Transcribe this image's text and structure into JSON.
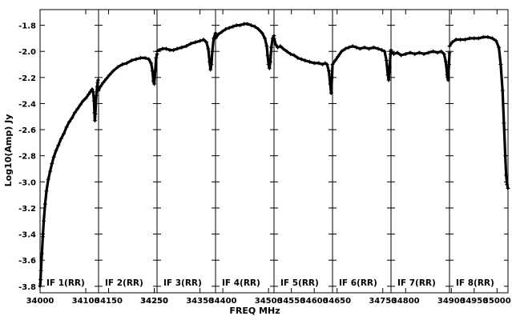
{
  "chart_data": {
    "type": "line",
    "xlabel": "FREQ MHz",
    "ylabel": "Log10(Amp) Jy",
    "ylim": [
      -3.85,
      -1.68
    ],
    "panels": [
      {
        "label": "IF 1(RR)",
        "xlim": [
          34000,
          34128
        ],
        "ticks": [
          {
            "v": 34000,
            "t": "34000"
          },
          {
            "v": 34100,
            "t": "34100"
          }
        ],
        "x": [
          34000,
          34001,
          34002,
          34004,
          34006,
          34008,
          34011,
          34014,
          34018,
          34022,
          34026,
          34030,
          34035,
          34040,
          34046,
          34052,
          34058,
          34064,
          34070,
          34076,
          34082,
          34088,
          34094,
          34100,
          34106,
          34110,
          34114,
          34116,
          34118,
          34119,
          34120,
          34121,
          34123,
          34125,
          34126,
          34127
        ],
        "y": [
          -3.8,
          -3.75,
          -3.68,
          -3.55,
          -3.42,
          -3.3,
          -3.17,
          -3.07,
          -2.98,
          -2.92,
          -2.86,
          -2.81,
          -2.76,
          -2.72,
          -2.67,
          -2.63,
          -2.58,
          -2.54,
          -2.51,
          -2.47,
          -2.44,
          -2.41,
          -2.38,
          -2.36,
          -2.33,
          -2.31,
          -2.29,
          -2.31,
          -2.38,
          -2.47,
          -2.53,
          -2.48,
          -2.34,
          -2.27,
          -2.24,
          -2.22
        ]
      },
      {
        "label": "IF 2(RR)",
        "xlim": [
          34128,
          34256
        ],
        "ticks": [
          {
            "v": 34150,
            "t": "34150"
          },
          {
            "v": 34250,
            "t": "34250"
          }
        ],
        "x": [
          34128,
          34132,
          34138,
          34145,
          34152,
          34160,
          34170,
          34180,
          34190,
          34200,
          34210,
          34220,
          34230,
          34238,
          34243,
          34246,
          34248,
          34250,
          34252,
          34254,
          34256
        ],
        "y": [
          -2.3,
          -2.27,
          -2.24,
          -2.21,
          -2.18,
          -2.15,
          -2.12,
          -2.1,
          -2.09,
          -2.07,
          -2.06,
          -2.05,
          -2.05,
          -2.06,
          -2.09,
          -2.15,
          -2.23,
          -2.25,
          -2.15,
          -2.05,
          -2.02
        ]
      },
      {
        "label": "IF 3(RR)",
        "xlim": [
          34256,
          34384
        ],
        "ticks": [
          {
            "v": 34250,
            "t": "34250"
          },
          {
            "v": 34350,
            "t": "34350"
          }
        ],
        "x": [
          34256,
          34260,
          34268,
          34276,
          34284,
          34292,
          34300,
          34310,
          34320,
          34330,
          34340,
          34350,
          34358,
          34364,
          34368,
          34371,
          34373,
          34375,
          34377,
          34380,
          34384
        ],
        "y": [
          -2.0,
          -1.99,
          -1.98,
          -1.98,
          -1.99,
          -1.99,
          -1.98,
          -1.97,
          -1.96,
          -1.94,
          -1.93,
          -1.92,
          -1.91,
          -1.93,
          -1.98,
          -2.08,
          -2.14,
          -2.1,
          -2.0,
          -1.9,
          -1.86
        ]
      },
      {
        "label": "IF 4(RR)",
        "xlim": [
          34384,
          34512
        ],
        "ticks": [
          {
            "v": 34400,
            "t": "34400"
          },
          {
            "v": 34500,
            "t": "34500"
          }
        ],
        "x": [
          34384,
          34390,
          34398,
          34406,
          34414,
          34422,
          34430,
          34438,
          34446,
          34454,
          34462,
          34470,
          34478,
          34486,
          34492,
          34496,
          34498,
          34500,
          34502,
          34504,
          34506,
          34509,
          34512
        ],
        "y": [
          -1.9,
          -1.87,
          -1.85,
          -1.83,
          -1.82,
          -1.81,
          -1.8,
          -1.8,
          -1.79,
          -1.79,
          -1.8,
          -1.81,
          -1.83,
          -1.86,
          -1.9,
          -1.96,
          -2.03,
          -2.1,
          -2.13,
          -2.08,
          -1.97,
          -1.9,
          -1.88
        ]
      },
      {
        "label": "IF 5(RR)",
        "xlim": [
          34512,
          34640
        ],
        "ticks": [
          {
            "v": 34550,
            "t": "34550"
          },
          {
            "v": 34600,
            "t": "34600"
          }
        ],
        "x": [
          34512,
          34516,
          34520,
          34526,
          34532,
          34540,
          34548,
          34556,
          34564,
          34572,
          34580,
          34590,
          34600,
          34610,
          34618,
          34624,
          34628,
          34632,
          34635,
          34637,
          34639,
          34640
        ],
        "y": [
          -1.9,
          -1.95,
          -1.97,
          -1.96,
          -1.98,
          -2.0,
          -2.02,
          -2.03,
          -2.05,
          -2.06,
          -2.07,
          -2.08,
          -2.09,
          -2.09,
          -2.1,
          -2.09,
          -2.1,
          -2.15,
          -2.25,
          -2.32,
          -2.2,
          -2.1
        ]
      },
      {
        "label": "IF 6(RR)",
        "xlim": [
          34640,
          34768
        ],
        "ticks": [
          {
            "v": 34650,
            "t": "34650"
          },
          {
            "v": 34750,
            "t": "34750"
          }
        ],
        "x": [
          34640,
          34646,
          34652,
          34660,
          34668,
          34676,
          34684,
          34692,
          34700,
          34710,
          34720,
          34730,
          34740,
          34748,
          34754,
          34758,
          34761,
          34763,
          34765,
          34767,
          34768
        ],
        "y": [
          -2.1,
          -2.07,
          -2.04,
          -2.0,
          -1.98,
          -1.97,
          -1.96,
          -1.97,
          -1.98,
          -1.97,
          -1.98,
          -1.97,
          -1.98,
          -1.99,
          -2.0,
          -2.07,
          -2.18,
          -2.22,
          -2.12,
          -2.02,
          -1.99
        ]
      },
      {
        "label": "IF 7(RR)",
        "xlim": [
          34768,
          34896
        ],
        "ticks": [
          {
            "v": 34800,
            "t": "34800"
          }
        ],
        "x": [
          34768,
          34774,
          34782,
          34790,
          34800,
          34810,
          34820,
          34830,
          34840,
          34850,
          34860,
          34870,
          34878,
          34884,
          34888,
          34891,
          34893,
          34895,
          34896
        ],
        "y": [
          -2.0,
          -2.02,
          -2.01,
          -2.03,
          -2.02,
          -2.01,
          -2.02,
          -2.01,
          -2.02,
          -2.01,
          -2.0,
          -2.01,
          -2.0,
          -2.02,
          -2.08,
          -2.18,
          -2.22,
          -2.1,
          -2.01
        ]
      },
      {
        "label": "IF 8(RR)",
        "xlim": [
          34896,
          35024
        ],
        "ticks": [
          {
            "v": 34900,
            "t": "34900"
          },
          {
            "v": 34950,
            "t": "34950"
          },
          {
            "v": 35000,
            "t": "35000"
          }
        ],
        "x": [
          34896,
          34902,
          34910,
          34920,
          34930,
          34940,
          34950,
          34960,
          34970,
          34980,
          34990,
          34998,
          35004,
          35008,
          35012,
          35015,
          35018,
          35020,
          35022,
          35024
        ],
        "y": [
          -1.96,
          -1.93,
          -1.91,
          -1.91,
          -1.91,
          -1.9,
          -1.9,
          -1.9,
          -1.89,
          -1.89,
          -1.9,
          -1.92,
          -1.97,
          -2.1,
          -2.3,
          -2.55,
          -2.8,
          -2.95,
          -3.02,
          -3.05
        ]
      }
    ],
    "y_ticks": [
      {
        "v": -1.8,
        "t": "-1.8"
      },
      {
        "v": -2.0,
        "t": "-2.0"
      },
      {
        "v": -2.2,
        "t": "-2.2"
      },
      {
        "v": -2.4,
        "t": "-2.4"
      },
      {
        "v": -2.6,
        "t": "-2.6"
      },
      {
        "v": -2.8,
        "t": "-2.8"
      },
      {
        "v": -3.0,
        "t": "-3.0"
      },
      {
        "v": -3.2,
        "t": "-3.2"
      },
      {
        "v": -3.4,
        "t": "-3.4"
      },
      {
        "v": -3.6,
        "t": "-3.6"
      },
      {
        "v": -3.8,
        "t": "-3.8"
      }
    ],
    "grid": false
  }
}
